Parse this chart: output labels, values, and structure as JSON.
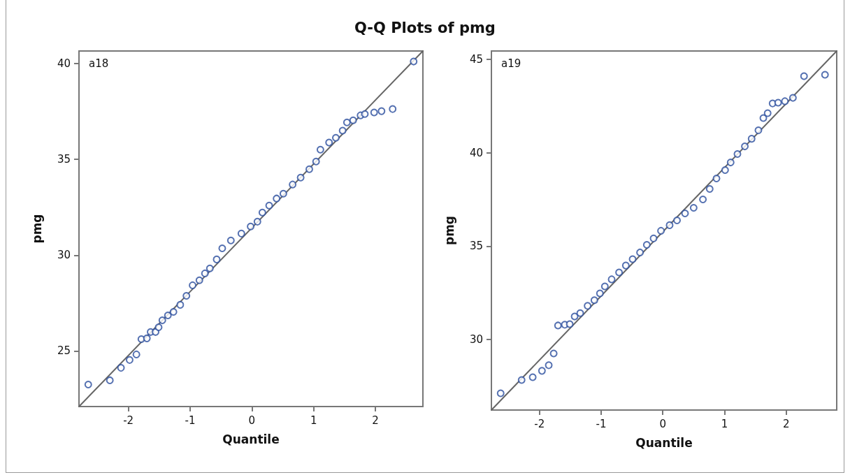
{
  "chart_data": [
    {
      "type": "scatter",
      "title": "Q-Q Plots of pmg",
      "xlabel": "Quantile",
      "ylabel": "pmg",
      "annotations": [
        "a18"
      ],
      "xlim": [
        -2.8,
        2.77
      ],
      "ylim": [
        22.1,
        40.66
      ],
      "xticks": [
        -2,
        -1,
        0,
        1,
        2
      ],
      "yticks": [
        25,
        30,
        35,
        40
      ],
      "grid": false,
      "marker": "circle",
      "series": [
        {
          "type": "scatter",
          "color": "#2a4d9e",
          "x": [
            -2.65,
            -2.3,
            -2.12,
            -1.98,
            -1.87,
            -1.79,
            -1.7,
            -1.64,
            -1.56,
            -1.51,
            -1.45,
            -1.36,
            -1.27,
            -1.16,
            -1.06,
            -0.96,
            -0.85,
            -0.76,
            -0.68,
            -0.57,
            -0.48,
            -0.34,
            -0.17,
            -0.02,
            0.09,
            0.17,
            0.28,
            0.4,
            0.51,
            0.66,
            0.79,
            0.93,
            1.04,
            1.11,
            1.25,
            1.36,
            1.47,
            1.54,
            1.64,
            1.76,
            1.83,
            1.98,
            2.1,
            2.28,
            2.62
          ],
          "values": [
            23.25,
            23.47,
            24.12,
            24.53,
            24.82,
            25.62,
            25.66,
            25.99,
            25.99,
            26.24,
            26.6,
            26.86,
            27.04,
            27.41,
            27.88,
            28.43,
            28.69,
            29.05,
            29.31,
            29.78,
            30.36,
            30.77,
            31.13,
            31.5,
            31.75,
            32.23,
            32.59,
            32.96,
            33.21,
            33.69,
            34.05,
            34.49,
            34.89,
            35.51,
            35.88,
            36.13,
            36.5,
            36.93,
            37.04,
            37.3,
            37.37,
            37.45,
            37.52,
            37.63,
            40.11
          ]
        },
        {
          "type": "line",
          "color": "#666666",
          "line_style": "solid",
          "marker": "none",
          "x": [
            -2.8,
            2.77
          ],
          "values": [
            22.1,
            40.66
          ]
        }
      ]
    },
    {
      "type": "scatter",
      "xlabel": "Quantile",
      "ylabel": "pmg",
      "annotations": [
        "a19"
      ],
      "xlim": [
        -2.78,
        2.82
      ],
      "ylim": [
        26.22,
        45.45
      ],
      "xticks": [
        -2,
        -1,
        0,
        1,
        2
      ],
      "yticks": [
        30,
        35,
        40,
        45
      ],
      "grid": false,
      "marker": "circle",
      "series": [
        {
          "type": "scatter",
          "color": "#2a4d9e",
          "x": [
            -2.63,
            -2.29,
            -2.11,
            -1.96,
            -1.85,
            -1.77,
            -1.7,
            -1.59,
            -1.51,
            -1.43,
            -1.34,
            -1.22,
            -1.11,
            -1.02,
            -0.94,
            -0.83,
            -0.71,
            -0.6,
            -0.49,
            -0.37,
            -0.26,
            -0.15,
            -0.03,
            0.11,
            0.23,
            0.36,
            0.5,
            0.65,
            0.76,
            0.87,
            1.01,
            1.1,
            1.21,
            1.33,
            1.44,
            1.55,
            1.63,
            1.7,
            1.78,
            1.87,
            1.98,
            2.11,
            2.29,
            2.63
          ],
          "values": [
            27.12,
            27.83,
            27.98,
            28.32,
            28.62,
            29.25,
            30.75,
            30.79,
            30.82,
            31.23,
            31.41,
            31.8,
            32.1,
            32.47,
            32.84,
            33.22,
            33.59,
            33.96,
            34.3,
            34.66,
            35.07,
            35.41,
            35.82,
            36.12,
            36.38,
            36.75,
            37.05,
            37.5,
            38.06,
            38.62,
            39.07,
            39.48,
            39.93,
            40.34,
            40.75,
            41.2,
            41.86,
            42.12,
            42.64,
            42.68,
            42.76,
            42.94,
            44.1,
            44.18
          ]
        },
        {
          "type": "line",
          "color": "#666666",
          "line_style": "solid",
          "marker": "none",
          "x": [
            -2.78,
            2.82
          ],
          "values": [
            26.22,
            45.45
          ]
        }
      ]
    }
  ]
}
